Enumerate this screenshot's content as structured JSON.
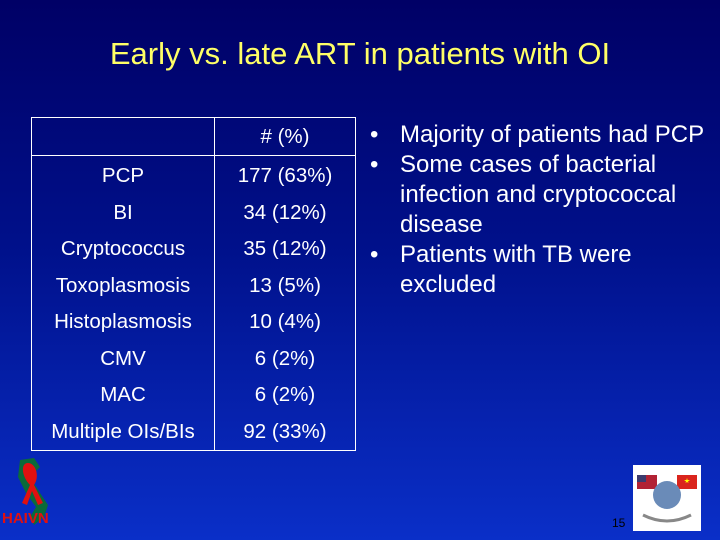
{
  "title": "Early vs. late ART in patients with OI",
  "table": {
    "header": [
      "",
      "# (%)"
    ],
    "rows": [
      [
        "PCP",
        "177 (63%)"
      ],
      [
        "BI",
        "34 (12%)"
      ],
      [
        "Cryptococcus",
        "35 (12%)"
      ],
      [
        "Toxoplasmosis",
        "13 (5%)"
      ],
      [
        "Histoplasmosis",
        "10 (4%)"
      ],
      [
        "CMV",
        "6 (2%)"
      ],
      [
        "MAC",
        "6 (2%)"
      ],
      [
        "Multiple OIs/BIs",
        "92 (33%)"
      ]
    ]
  },
  "bullets": [
    "Majority of patients had PCP",
    "Some cases of bacterial infection and cryptococcal disease",
    "Patients with TB were excluded"
  ],
  "footer": {
    "logo_text": "HAIVN",
    "page_number": "15"
  }
}
